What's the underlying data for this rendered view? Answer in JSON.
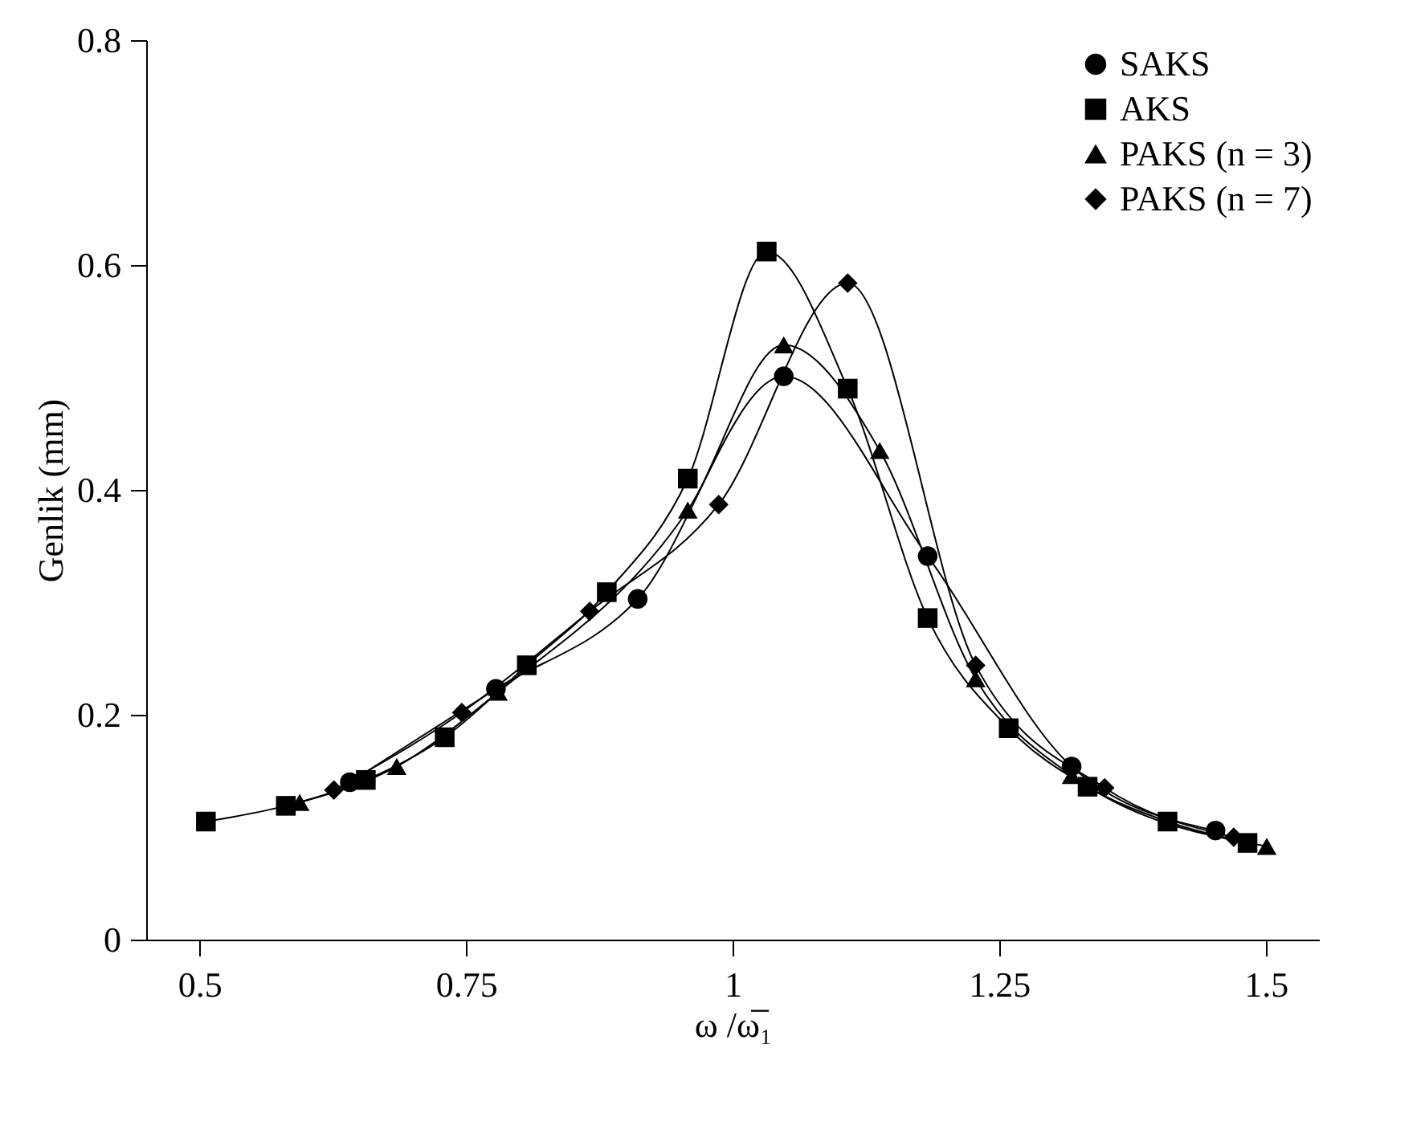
{
  "chart_data": {
    "type": "line",
    "xlabel": "ω /ω̅₁",
    "ylabel": "Genlik (mm)",
    "xlim": [
      0.45,
      1.55
    ],
    "xticks": [
      0.5,
      0.75,
      1,
      1.25,
      1.5
    ],
    "ylim": [
      0,
      0.8
    ],
    "yticks": [
      0,
      0.2,
      0.4,
      0.6,
      0.8
    ],
    "grid": false,
    "legend": "top right",
    "series": [
      {
        "name": "SAKS",
        "color": "#000000",
        "marker": "circle",
        "x": [
          0.641,
          0.778,
          0.911,
          1.048,
          1.183,
          1.318,
          1.453
        ],
        "values": [
          0.14,
          0.223,
          0.303,
          0.501,
          0.341,
          0.154,
          0.097
        ]
      },
      {
        "name": "AKS",
        "color": "#000000",
        "marker": "square",
        "x": [
          0.506,
          0.581,
          0.656,
          0.73,
          0.807,
          0.882,
          0.958,
          1.032,
          1.108,
          1.183,
          1.259,
          1.333,
          1.408,
          1.483
        ],
        "values": [
          0.105,
          0.119,
          0.142,
          0.18,
          0.244,
          0.309,
          0.41,
          0.612,
          0.49,
          0.286,
          0.188,
          0.136,
          0.105,
          0.086
        ]
      },
      {
        "name": "PAKS (n = 3)",
        "color": "#000000",
        "marker": "triangle",
        "x": [
          0.594,
          0.685,
          0.78,
          0.958,
          1.048,
          1.138,
          1.228,
          1.318,
          1.501
        ],
        "values": [
          0.122,
          0.154,
          0.22,
          0.382,
          0.529,
          0.435,
          0.232,
          0.146,
          0.083
        ]
      },
      {
        "name": "PAKS (n = 7)",
        "color": "#000000",
        "marker": "diamond",
        "x": [
          0.626,
          0.746,
          0.866,
          0.987,
          1.108,
          1.228,
          1.349,
          1.47
        ],
        "values": [
          0.133,
          0.202,
          0.292,
          0.387,
          0.584,
          0.244,
          0.135,
          0.091
        ]
      }
    ]
  }
}
